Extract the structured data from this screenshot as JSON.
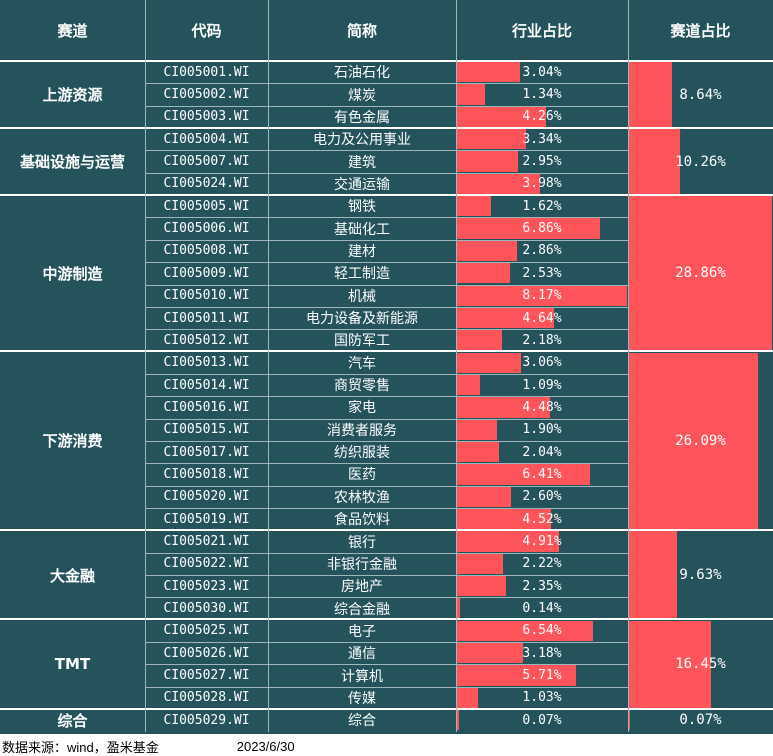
{
  "headers": {
    "sector": "赛道",
    "code": "代码",
    "name": "简称",
    "industry_share": "行业占比",
    "sector_share": "赛道占比"
  },
  "colors": {
    "background": "#25535c",
    "bar": "#ff545a",
    "text": "#ffffff"
  },
  "groups": [
    {
      "sector": "上游资源",
      "share": "8.64%",
      "share_value": 8.64,
      "rows": [
        {
          "code": "CI005001.WI",
          "name": "石油石化",
          "share": "3.04%",
          "value": 3.04
        },
        {
          "code": "CI005002.WI",
          "name": "煤炭",
          "share": "1.34%",
          "value": 1.34
        },
        {
          "code": "CI005003.WI",
          "name": "有色金属",
          "share": "4.26%",
          "value": 4.26
        }
      ]
    },
    {
      "sector": "基础设施与运营",
      "share": "10.26%",
      "share_value": 10.26,
      "rows": [
        {
          "code": "CI005004.WI",
          "name": "电力及公用事业",
          "share": "3.34%",
          "value": 3.34
        },
        {
          "code": "CI005007.WI",
          "name": "建筑",
          "share": "2.95%",
          "value": 2.95
        },
        {
          "code": "CI005024.WI",
          "name": "交通运输",
          "share": "3.98%",
          "value": 3.98
        }
      ]
    },
    {
      "sector": "中游制造",
      "share": "28.86%",
      "share_value": 28.86,
      "rows": [
        {
          "code": "CI005005.WI",
          "name": "钢铁",
          "share": "1.62%",
          "value": 1.62
        },
        {
          "code": "CI005006.WI",
          "name": "基础化工",
          "share": "6.86%",
          "value": 6.86
        },
        {
          "code": "CI005008.WI",
          "name": "建材",
          "share": "2.86%",
          "value": 2.86
        },
        {
          "code": "CI005009.WI",
          "name": "轻工制造",
          "share": "2.53%",
          "value": 2.53
        },
        {
          "code": "CI005010.WI",
          "name": "机械",
          "share": "8.17%",
          "value": 8.17
        },
        {
          "code": "CI005011.WI",
          "name": "电力设备及新能源",
          "share": "4.64%",
          "value": 4.64
        },
        {
          "code": "CI005012.WI",
          "name": "国防军工",
          "share": "2.18%",
          "value": 2.18
        }
      ]
    },
    {
      "sector": "下游消费",
      "share": "26.09%",
      "share_value": 26.09,
      "rows": [
        {
          "code": "CI005013.WI",
          "name": "汽车",
          "share": "3.06%",
          "value": 3.06
        },
        {
          "code": "CI005014.WI",
          "name": "商贸零售",
          "share": "1.09%",
          "value": 1.09
        },
        {
          "code": "CI005016.WI",
          "name": "家电",
          "share": "4.48%",
          "value": 4.48
        },
        {
          "code": "CI005015.WI",
          "name": "消费者服务",
          "share": "1.90%",
          "value": 1.9
        },
        {
          "code": "CI005017.WI",
          "name": "纺织服装",
          "share": "2.04%",
          "value": 2.04
        },
        {
          "code": "CI005018.WI",
          "name": "医药",
          "share": "6.41%",
          "value": 6.41
        },
        {
          "code": "CI005020.WI",
          "name": "农林牧渔",
          "share": "2.60%",
          "value": 2.6
        },
        {
          "code": "CI005019.WI",
          "name": "食品饮料",
          "share": "4.52%",
          "value": 4.52
        }
      ]
    },
    {
      "sector": "大金融",
      "share": "9.63%",
      "share_value": 9.63,
      "rows": [
        {
          "code": "CI005021.WI",
          "name": "银行",
          "share": "4.91%",
          "value": 4.91
        },
        {
          "code": "CI005022.WI",
          "name": "非银行金融",
          "share": "2.22%",
          "value": 2.22
        },
        {
          "code": "CI005023.WI",
          "name": "房地产",
          "share": "2.35%",
          "value": 2.35
        },
        {
          "code": "CI005030.WI",
          "name": "综合金融",
          "share": "0.14%",
          "value": 0.14
        }
      ]
    },
    {
      "sector": "TMT",
      "share": "16.45%",
      "share_value": 16.45,
      "rows": [
        {
          "code": "CI005025.WI",
          "name": "电子",
          "share": "6.54%",
          "value": 6.54
        },
        {
          "code": "CI005026.WI",
          "name": "通信",
          "share": "3.18%",
          "value": 3.18
        },
        {
          "code": "CI005027.WI",
          "name": "计算机",
          "share": "5.71%",
          "value": 5.71
        },
        {
          "code": "CI005028.WI",
          "name": "传媒",
          "share": "1.03%",
          "value": 1.03
        }
      ]
    },
    {
      "sector": "综合",
      "share": "0.07%",
      "share_value": 0.07,
      "rows": [
        {
          "code": "CI005029.WI",
          "name": "综合",
          "share": "0.07%",
          "value": 0.07
        }
      ]
    }
  ],
  "footer": {
    "source": "数据来源：wind，盈米基金",
    "date": "2023/6/30"
  }
}
